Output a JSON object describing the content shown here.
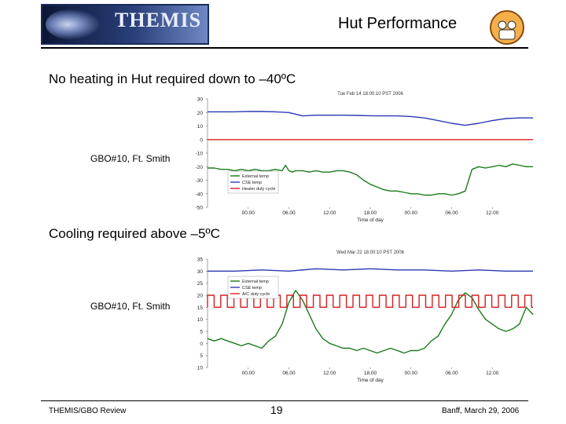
{
  "header": {
    "logo_text": "THEMIS",
    "title": "Hut Performance"
  },
  "statements": {
    "first": "No heating in Hut required down to –40ºC",
    "second": "Cooling required above  –5ºC"
  },
  "side_labels": {
    "first": "GBO#10, Ft. Smith",
    "second": "GBO#10, Ft. Smith"
  },
  "footer": {
    "left": "THEMIS/GBO Review",
    "page": "19",
    "right": "Banff, March 29, 2006"
  },
  "chart_data": [
    {
      "type": "line",
      "title": "Tue Feb 14 18:00:10 PST 2006",
      "xlabel": "Time of day",
      "ylabel": "",
      "x_ticks": [
        "00.00",
        "06.00",
        "12.00",
        "18.00",
        "00.00",
        "06.00",
        "12.00"
      ],
      "x_tick_hours": [
        6,
        12,
        18,
        24,
        30,
        36,
        42
      ],
      "xlim": [
        0,
        48
      ],
      "ylim": [
        -50,
        30
      ],
      "y_ticks": [
        30,
        20,
        10,
        0,
        -10,
        -20,
        -30,
        -40,
        -50
      ],
      "grid": false,
      "legend_placement": "bottom-left",
      "series": [
        {
          "name": "External temp",
          "color": "#1a7a1a",
          "x": [
            0,
            1,
            2,
            3,
            4,
            5,
            6,
            7,
            8,
            9,
            10,
            11,
            11.5,
            12,
            12.5,
            13,
            14,
            15,
            16,
            17,
            18,
            19,
            20,
            21,
            22,
            23,
            24,
            25,
            26,
            27,
            28,
            29,
            30,
            31,
            32,
            33,
            34,
            35,
            36,
            37,
            38,
            38.5,
            39,
            40,
            41,
            42,
            43,
            44,
            45,
            46,
            47,
            48
          ],
          "y": [
            -21,
            -21,
            -22,
            -22,
            -23,
            -22,
            -23,
            -22,
            -23,
            -23,
            -22,
            -23,
            -19,
            -23,
            -24,
            -23,
            -23,
            -24,
            -23,
            -24,
            -24,
            -23,
            -23,
            -24,
            -26,
            -30,
            -33,
            -35,
            -37,
            -38,
            -38,
            -39,
            -40,
            -40,
            -41,
            -41,
            -40,
            -40,
            -41,
            -40,
            -38,
            -30,
            -22,
            -20,
            -21,
            -20,
            -19,
            -20,
            -18,
            -19,
            -20,
            -20
          ]
        },
        {
          "name": "CSE temp",
          "color": "#2a3ab0",
          "x": [
            0,
            2,
            4,
            6,
            8,
            10,
            12,
            14,
            16,
            18,
            20,
            22,
            24,
            26,
            28,
            30,
            32,
            34,
            36,
            38,
            40,
            42,
            44,
            46,
            48
          ],
          "y": [
            20.5,
            20.5,
            20.5,
            20.8,
            20.7,
            20.5,
            20,
            17.5,
            18,
            18,
            18,
            17.8,
            17.6,
            17.5,
            17.5,
            17,
            16,
            14,
            12,
            10.5,
            12,
            14,
            15.5,
            16,
            16
          ]
        },
        {
          "name": "Heater duty cycle",
          "color": "#d42020",
          "x": [
            0,
            48
          ],
          "y": [
            0,
            0
          ]
        }
      ]
    },
    {
      "type": "line",
      "title": "Wed Mar 22 18:00:10 PST 2006",
      "xlabel": "Time of day",
      "ylabel": "",
      "x_ticks": [
        "00.00",
        "06.00",
        "12.00",
        "18.00",
        "00.00",
        "06.00",
        "12.00"
      ],
      "x_tick_hours": [
        6,
        12,
        18,
        24,
        30,
        36,
        42
      ],
      "xlim": [
        0,
        48
      ],
      "ylim": [
        -10,
        35
      ],
      "y_ticks": [
        35,
        30,
        25,
        20,
        15,
        10,
        5,
        0,
        -5,
        -10
      ],
      "y_tick_labels": [
        "35",
        "30",
        "25",
        "20",
        "15",
        "10",
        "5",
        "0",
        "5",
        "10"
      ],
      "grid": false,
      "legend_placement": "top-left",
      "series": [
        {
          "name": "External temp",
          "color": "#1a7a1a",
          "x": [
            0,
            1,
            2,
            3,
            4,
            5,
            6,
            7,
            8,
            9,
            10,
            11,
            12,
            13,
            14,
            15,
            16,
            17,
            18,
            19,
            20,
            21,
            22,
            23,
            24,
            25,
            26,
            27,
            28,
            29,
            30,
            31,
            32,
            33,
            34,
            35,
            36,
            37,
            38,
            39,
            40,
            41,
            42,
            43,
            44,
            45,
            46,
            47,
            48
          ],
          "y": [
            2,
            1,
            2,
            1,
            0,
            -1,
            0,
            -1,
            -2,
            1,
            3,
            8,
            17,
            22,
            18,
            12,
            6,
            2,
            0,
            -1,
            -2,
            -2,
            -3,
            -2,
            -3,
            -4,
            -3,
            -2,
            -3,
            -4,
            -3,
            -3,
            -2,
            1,
            3,
            8,
            12,
            18,
            21,
            19,
            14,
            10,
            8,
            6,
            5,
            6,
            8,
            15,
            12
          ]
        },
        {
          "name": "CSE temp",
          "color": "#2a3ab0",
          "x": [
            0,
            4,
            8,
            12,
            16,
            20,
            24,
            28,
            32,
            36,
            40,
            44,
            48
          ],
          "y": [
            30,
            30,
            30.5,
            30,
            31,
            30.5,
            31,
            30.5,
            30.5,
            30,
            30.5,
            30,
            30
          ]
        },
        {
          "name": "A/C duty cycle",
          "color": "#d42020",
          "type": "square_wave",
          "low": 15,
          "high": 20,
          "period_hours": 1.95,
          "duty": 0.5
        }
      ]
    }
  ]
}
